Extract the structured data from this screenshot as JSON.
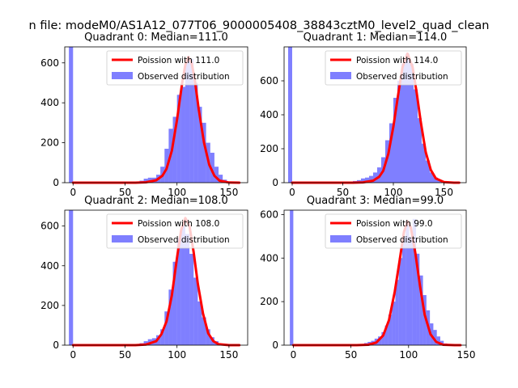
{
  "suptitle": "n file: modeM0/AS1A12_077T06_9000005408_38843cztM0_level2_quad_clean",
  "chart_data": [
    {
      "type": "bar",
      "title": "Quadrant 0: Median=111.0",
      "legend": [
        "Poission with 111.0",
        "Observed distribution"
      ],
      "legend_position": "top-right",
      "xlim": [
        -8,
        168
      ],
      "ylim": [
        0,
        680
      ],
      "xticks": [
        0,
        50,
        100,
        150
      ],
      "yticks": [
        0,
        200,
        400,
        600
      ],
      "bin_width": 4,
      "observed": {
        "x": [
          -2,
          62,
          66,
          70,
          74,
          78,
          82,
          86,
          90,
          94,
          98,
          102,
          106,
          110,
          114,
          118,
          122,
          126,
          130,
          134,
          138,
          142,
          146,
          150
        ],
        "y": [
          680,
          2,
          10,
          20,
          25,
          25,
          40,
          80,
          170,
          270,
          330,
          440,
          480,
          610,
          620,
          500,
          380,
          300,
          200,
          150,
          80,
          40,
          15,
          5
        ]
      },
      "poisson": {
        "x": [
          0,
          60,
          70,
          80,
          86,
          90,
          95,
          100,
          105,
          108,
          111,
          114,
          117,
          121,
          126,
          131,
          136,
          141,
          150,
          160
        ],
        "y": [
          0,
          0,
          2,
          12,
          35,
          70,
          160,
          315,
          500,
          590,
          630,
          600,
          520,
          365,
          200,
          90,
          35,
          10,
          1,
          0
        ]
      }
    },
    {
      "type": "bar",
      "title": "Quadrant 1: Median=114.0",
      "legend": [
        "Poission with 114.0",
        "Observed distribution"
      ],
      "legend_position": "top-right",
      "xlim": [
        -8,
        172
      ],
      "ylim": [
        0,
        800
      ],
      "xticks": [
        0,
        50,
        100,
        150
      ],
      "yticks": [
        0,
        200,
        400,
        600
      ],
      "bin_width": 4,
      "observed": {
        "x": [
          -2,
          58,
          62,
          66,
          70,
          74,
          78,
          82,
          86,
          90,
          94,
          98,
          102,
          106,
          110,
          114,
          118,
          122,
          126,
          130,
          134,
          138,
          142,
          146,
          150,
          154
        ],
        "y": [
          800,
          5,
          10,
          15,
          25,
          30,
          40,
          60,
          90,
          150,
          250,
          350,
          500,
          600,
          700,
          760,
          700,
          550,
          380,
          230,
          130,
          60,
          30,
          15,
          5,
          2
        ]
      },
      "poisson": {
        "x": [
          0,
          60,
          70,
          80,
          86,
          90,
          95,
          100,
          105,
          109,
          114,
          119,
          123,
          127,
          132,
          137,
          142,
          150,
          160,
          165
        ],
        "y": [
          0,
          0,
          2,
          12,
          35,
          70,
          170,
          330,
          530,
          680,
          760,
          680,
          530,
          360,
          180,
          75,
          25,
          4,
          0,
          0
        ]
      }
    },
    {
      "type": "bar",
      "title": "Quadrant 2: Median=108.0",
      "legend": [
        "Poission with 108.0",
        "Observed distribution"
      ],
      "legend_position": "top-right",
      "xlim": [
        -8,
        168
      ],
      "ylim": [
        0,
        680
      ],
      "xticks": [
        0,
        50,
        100,
        150
      ],
      "yticks": [
        0,
        200,
        400,
        600
      ],
      "bin_width": 4,
      "observed": {
        "x": [
          -2,
          62,
          66,
          70,
          74,
          78,
          82,
          86,
          90,
          94,
          98,
          102,
          106,
          110,
          114,
          118,
          122,
          126,
          130,
          134,
          138,
          142,
          146
        ],
        "y": [
          680,
          5,
          10,
          20,
          30,
          35,
          50,
          80,
          170,
          280,
          420,
          540,
          600,
          560,
          460,
          340,
          220,
          140,
          80,
          40,
          20,
          8,
          3
        ]
      },
      "poisson": {
        "x": [
          0,
          60,
          70,
          80,
          85,
          90,
          95,
          100,
          104,
          108,
          112,
          116,
          120,
          125,
          130,
          135,
          140,
          150,
          160
        ],
        "y": [
          0,
          0,
          3,
          20,
          55,
          120,
          250,
          440,
          580,
          640,
          600,
          470,
          310,
          160,
          60,
          20,
          5,
          0,
          0
        ]
      }
    },
    {
      "type": "bar",
      "title": "Quadrant 3: Median=99.0",
      "legend": [
        "Poission with 99.0",
        "Observed distribution"
      ],
      "legend_position": "top-right",
      "xlim": [
        -8,
        150
      ],
      "ylim": [
        0,
        620
      ],
      "xticks": [
        0,
        50,
        100,
        150
      ],
      "yticks": [
        0,
        200,
        400,
        600
      ],
      "bin_width": 3,
      "observed": {
        "x": [
          -1.5,
          60,
          63,
          66,
          69,
          72,
          75,
          78,
          81,
          84,
          87,
          90,
          93,
          96,
          99,
          102,
          105,
          108,
          111,
          114,
          117,
          120,
          123,
          126,
          129,
          132
        ],
        "y": [
          620,
          5,
          10,
          15,
          20,
          30,
          40,
          60,
          90,
          140,
          200,
          300,
          400,
          500,
          560,
          500,
          580,
          420,
          320,
          230,
          160,
          100,
          70,
          40,
          20,
          8
        ]
      },
      "poisson": {
        "x": [
          0,
          55,
          65,
          72,
          78,
          83,
          88,
          92,
          96,
          99,
          102,
          106,
          110,
          114,
          119,
          124,
          130,
          140,
          145
        ],
        "y": [
          0,
          0,
          2,
          12,
          45,
          115,
          245,
          380,
          520,
          570,
          540,
          420,
          270,
          140,
          50,
          15,
          2,
          0,
          0
        ]
      }
    }
  ]
}
